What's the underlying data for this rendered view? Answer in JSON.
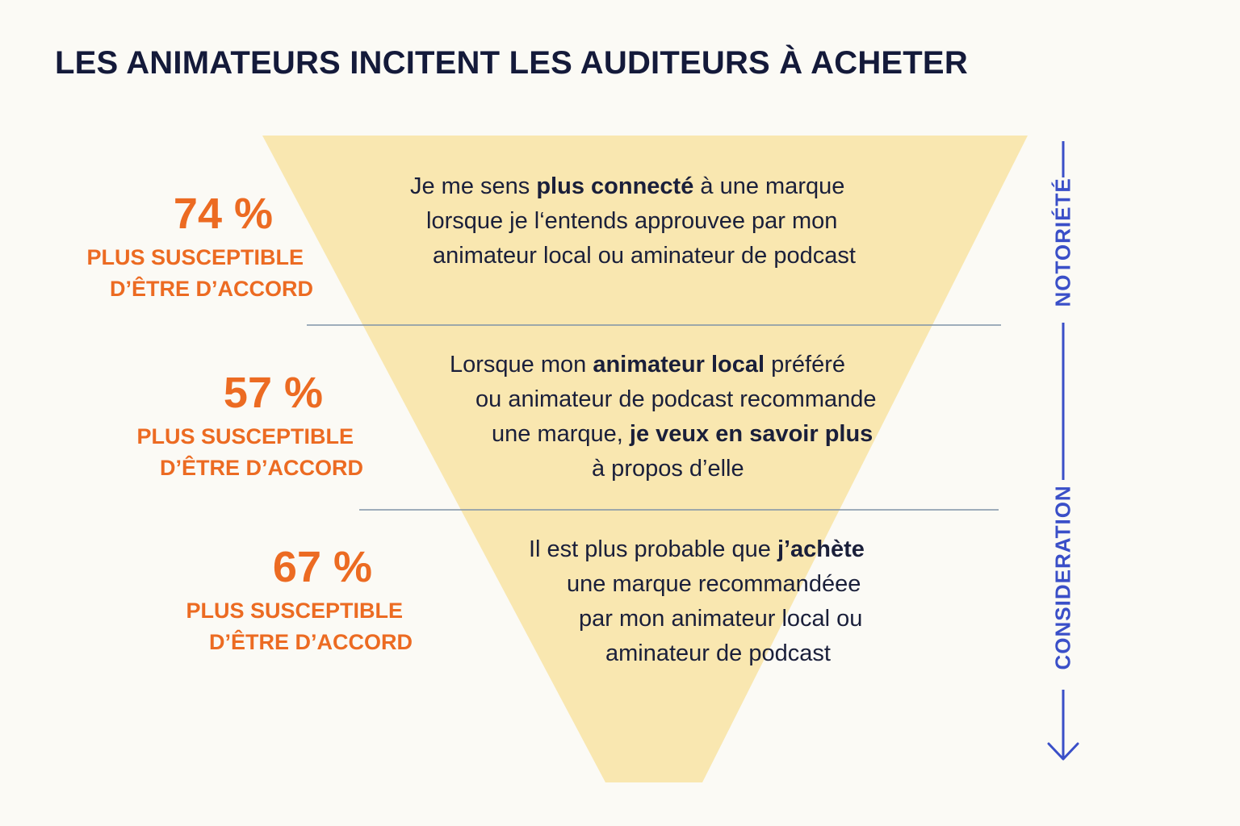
{
  "title": "LES ANIMATEURS INCITENT LES AUDITEURS À ACHETER",
  "stages": [
    {
      "percent": "74 %",
      "label_lines": [
        "PLUS SUSCEPTIBLE",
        "D’ÊTRE D’ACCORD"
      ],
      "statement_lines": [
        [
          {
            "t": "Je me sens "
          },
          {
            "t": "plus connecté",
            "b": true
          },
          {
            "t": " à une marque"
          }
        ],
        [
          {
            "t": "lorsque je l‘entends approuvee par mon"
          }
        ],
        [
          {
            "t": "animateur local ou aminateur de podcast"
          }
        ]
      ]
    },
    {
      "percent": "57 %",
      "label_lines": [
        "PLUS SUSCEPTIBLE",
        "D’ÊTRE D’ACCORD"
      ],
      "statement_lines": [
        [
          {
            "t": "Lorsque mon "
          },
          {
            "t": "animateur local",
            "b": true
          },
          {
            "t": " préféré"
          }
        ],
        [
          {
            "t": "ou animateur de podcast recommande"
          }
        ],
        [
          {
            "t": "une marque, "
          },
          {
            "t": "je veux en savoir plus",
            "b": true
          }
        ],
        [
          {
            "t": "à propos d’elle"
          }
        ]
      ]
    },
    {
      "percent": "67 %",
      "label_lines": [
        "PLUS SUSCEPTIBLE",
        "D’ÊTRE D’ACCORD"
      ],
      "statement_lines": [
        [
          {
            "t": "Il est plus probable que "
          },
          {
            "t": "j’achète",
            "b": true
          }
        ],
        [
          {
            "t": "une marque recommandéee"
          }
        ],
        [
          {
            "t": "par mon animateur local ou"
          }
        ],
        [
          {
            "t": "aminateur de podcast"
          }
        ]
      ]
    }
  ],
  "axis": {
    "top_label": "NOTORIÉTÉ",
    "bottom_label": "CONSIDERATION",
    "color": "#3a4fc8",
    "arrow_icon": "arrow-down-icon"
  },
  "colors": {
    "funnel_fill": "#f9e7b0",
    "divider": "#7f93a8",
    "percent": "#ec6b22",
    "title": "#141a3a",
    "text": "#1a1f3a",
    "background": "#fbfaf5"
  }
}
